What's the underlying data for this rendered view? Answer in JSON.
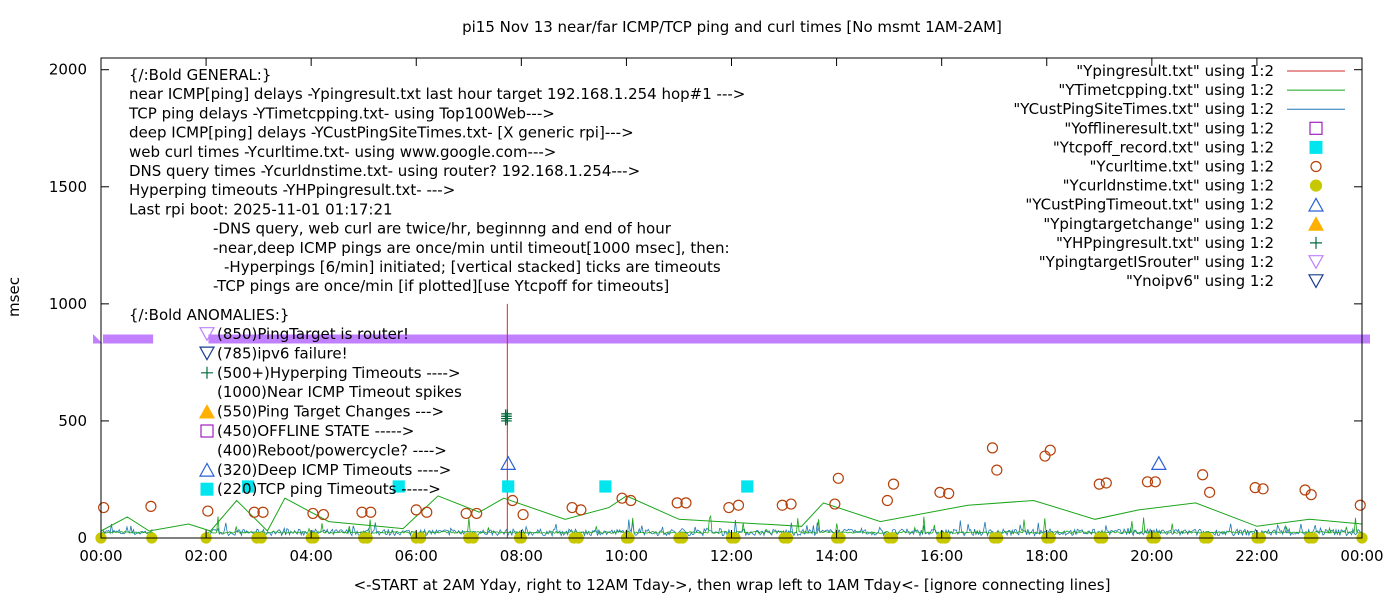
{
  "chart_data": {
    "type": "scatter",
    "title": "pi15 Nov 13  near/far ICMP/TCP ping and curl times [No msmt 1AM-2AM]",
    "xlabel": "<-START at 2AM Yday, right to 12AM Tday->, then wrap left to 1AM Tday<- [ignore connecting lines]",
    "ylabel": "msec",
    "xlim": [
      "00:00",
      "24:00"
    ],
    "ylim": [
      0,
      2050
    ],
    "x_tick_labels": [
      "00:00",
      "02:00",
      "04:00",
      "06:00",
      "08:00",
      "10:00",
      "12:00",
      "14:00",
      "16:00",
      "18:00",
      "20:00",
      "22:00",
      "00:00"
    ],
    "y_ticks": [
      0,
      500,
      1000,
      1500,
      2000
    ],
    "grid": false,
    "legend_position": "top-right",
    "info_lines": [
      "{/:Bold GENERAL:}",
      "near ICMP[ping] delays -Ypingresult.txt last hour target 192.168.1.254 hop#1 --->",
      "TCP ping delays -YTimetcpping.txt- using Top100Web--->",
      "deep ICMP[ping] delays -YCustPingSiteTimes.txt- [X generic rpi]--->",
      "web curl times -Ycurltime.txt- using www.google.com--->",
      "DNS query times -Ycurldnstime.txt- using router? 192.168.1.254--->",
      "Hyperping timeouts -YHPpingresult.txt- --->",
      "Last rpi boot: 2025-11-01 01:17:21",
      "-DNS query, web curl are twice/hr, beginnng and end of hour",
      "-near,deep ICMP pings are once/min until timeout[1000 msec], then:",
      "-Hyperpings [6/min] initiated; [vertical stacked] ticks are timeouts",
      "-TCP pings are once/min [if plotted][use Ytcpoff for timeouts]"
    ],
    "anomalies_title": "{/:Bold ANOMALIES:}",
    "anomaly_lines": [
      {
        "text": "(850)PingTarget is router!",
        "marker": "tri-down-violet"
      },
      {
        "text": "(785)ipv6 failure!",
        "marker": "tri-down-navy"
      },
      {
        "text": "(500+)Hyperping Timeouts ---->",
        "marker": "plus-green"
      },
      {
        "text": "(1000)Near ICMP Timeout spikes",
        "marker": ""
      },
      {
        "text": "(550)Ping Target Changes --->",
        "marker": "tri-up-gold"
      },
      {
        "text": "(450)OFFLINE STATE ----->",
        "marker": "square-purple"
      },
      {
        "text": "(400)Reboot/powercycle? ---->",
        "marker": ""
      },
      {
        "text": "(320)Deep ICMP Timeouts ---->",
        "marker": "tri-up-blue"
      },
      {
        "text": "(220)TCP ping Timeouts ----->",
        "marker": "square-cyan"
      }
    ],
    "legend_entries": [
      {
        "name": "\"Ypingresult.txt\" using 1:2",
        "kind": "line",
        "color": "#d62728"
      },
      {
        "name": "\"YTimetcpping.txt\" using 1:2",
        "kind": "line",
        "color": "#1aa51a"
      },
      {
        "name": "\"YCustPingSiteTimes.txt\" using 1:2",
        "kind": "line",
        "color": "#1f77b4"
      },
      {
        "name": "\"Yofflineresult.txt\" using 1:2",
        "kind": "square-open",
        "color": "#a020c0"
      },
      {
        "name": "\"Ytcpoff_record.txt\" using 1:2",
        "kind": "square-filled",
        "color": "#00e5ee"
      },
      {
        "name": "\"Ycurltime.txt\" using 1:2",
        "kind": "circle-open",
        "color": "#b5410a"
      },
      {
        "name": "\"Ycurldnstime.txt\" using 1:2",
        "kind": "circle-filled",
        "color": "#c8c800"
      },
      {
        "name": "\"YCustPingTimeout.txt\" using 1:2",
        "kind": "tri-up-open",
        "color": "#2a5fd6"
      },
      {
        "name": "\"Ypingtargetchange\" using 1:2",
        "kind": "tri-up-filled",
        "color": "#ffb000"
      },
      {
        "name": "\"YHPpingresult.txt\" using 1:2",
        "kind": "plus",
        "color": "#006b3c"
      },
      {
        "name": "\"YpingtargetISrouter\" using 1:2",
        "kind": "tri-down-open",
        "color": "#c080ff"
      },
      {
        "name": "\"Ynoipv6\" using 1:2",
        "kind": "tri-down-open",
        "color": "#1a3d8f"
      }
    ],
    "colors": {
      "ping": "#d62728",
      "tcp": "#1aa51a",
      "deep": "#1f77b4",
      "offline": "#a020c0",
      "tcpoff": "#00e5ee",
      "curl": "#b5410a",
      "dns": "#c8c800",
      "deeptimeout": "#2a5fd6",
      "targetchange": "#ffb000",
      "hpping": "#006b3c",
      "router": "#c080ff",
      "noipv6": "#1a3d8f"
    },
    "series": {
      "router_band": {
        "name": "\"YpingtargetISrouter\" using 1:2",
        "y": 850,
        "x": [
          "00:00",
          "00:55",
          "02:05",
          "24:00"
        ]
      },
      "near_icmp_spike": {
        "name": "\"Ypingresult.txt\" using 1:2",
        "x": "07:44",
        "y": 1000
      },
      "hyperping_timeouts": {
        "name": "\"YHPpingresult.txt\" using 1:2",
        "x": [
          "07:42",
          "07:42",
          "07:42",
          "07:42",
          "07:44",
          "07:44",
          "07:44",
          "07:44"
        ],
        "y": [
          500,
          510,
          520,
          530,
          500,
          510,
          520,
          530
        ]
      },
      "deep_timeouts": {
        "name": "\"YCustPingTimeout.txt\" using 1:2",
        "x": [
          "07:45",
          "20:08"
        ],
        "y": [
          320,
          320
        ]
      },
      "tcp_timeouts": {
        "name": "\"Ytcpoff_record.txt\" using 1:2",
        "x": [
          "02:48",
          "05:40",
          "07:45",
          "09:36",
          "12:18"
        ],
        "y": [
          220,
          220,
          220,
          220,
          220
        ]
      },
      "curl": {
        "name": "\"Ycurltime.txt\" using 1:2",
        "x": [
          "00:03",
          "00:57",
          "02:02",
          "02:55",
          "03:05",
          "04:02",
          "04:14",
          "04:58",
          "05:08",
          "06:00",
          "06:12",
          "06:57",
          "07:09",
          "07:50",
          "08:02",
          "08:58",
          "09:08",
          "09:55",
          "10:05",
          "10:58",
          "11:08",
          "11:57",
          "12:08",
          "12:58",
          "13:08",
          "13:58",
          "14:02",
          "14:58",
          "15:05",
          "15:58",
          "16:08",
          "16:58",
          "17:03",
          "17:58",
          "18:04",
          "19:00",
          "19:08",
          "19:55",
          "20:04",
          "20:58",
          "21:06",
          "21:58",
          "22:07",
          "22:55",
          "23:02",
          "23:58"
        ],
        "y": [
          130,
          135,
          115,
          110,
          110,
          105,
          100,
          110,
          110,
          120,
          110,
          105,
          105,
          160,
          100,
          130,
          120,
          170,
          160,
          150,
          150,
          130,
          140,
          140,
          145,
          145,
          255,
          160,
          230,
          195,
          190,
          385,
          290,
          350,
          375,
          230,
          235,
          240,
          240,
          270,
          195,
          215,
          210,
          205,
          185,
          140
        ]
      },
      "dns": {
        "name": "\"Ycurldnstime.txt\" using 1:2",
        "x": [
          "00:00",
          "00:58",
          "02:00",
          "02:58",
          "03:03",
          "04:00",
          "04:03",
          "05:00",
          "05:04",
          "06:00",
          "06:05",
          "07:00",
          "07:05",
          "07:58",
          "08:00",
          "09:00",
          "09:05",
          "10:00",
          "10:03",
          "11:00",
          "11:04",
          "12:00",
          "12:04",
          "13:00",
          "13:04",
          "14:00",
          "14:04",
          "15:00",
          "15:04",
          "16:00",
          "16:04",
          "17:00",
          "17:04",
          "18:00",
          "18:04",
          "19:00",
          "19:04",
          "20:00",
          "20:04",
          "21:00",
          "21:04",
          "22:00",
          "22:04",
          "23:00",
          "23:04",
          "24:00"
        ],
        "y": [
          0,
          0,
          0,
          0,
          0,
          0,
          0,
          0,
          0,
          0,
          0,
          0,
          0,
          0,
          0,
          0,
          0,
          0,
          0,
          0,
          0,
          0,
          0,
          0,
          0,
          0,
          0,
          0,
          0,
          0,
          0,
          0,
          0,
          0,
          0,
          0,
          0,
          0,
          0,
          0,
          0,
          0,
          0,
          0,
          0,
          0
        ]
      },
      "tcp_line": {
        "name": "\"YTimetcpping.txt\" using 1:2",
        "x": [
          "00:00",
          "00:30",
          "00:55",
          "01:40",
          "02:05",
          "02:35",
          "03:10",
          "03:30",
          "04:20",
          "05:45",
          "06:25",
          "07:12",
          "07:40",
          "08:50",
          "09:40",
          "10:00",
          "11:00",
          "13:20",
          "13:45",
          "14:50",
          "16:30",
          "17:45",
          "18:55",
          "19:45",
          "20:50",
          "22:00",
          "23:00",
          "24:00"
        ],
        "y": [
          30,
          90,
          30,
          60,
          30,
          160,
          30,
          170,
          70,
          40,
          180,
          110,
          170,
          80,
          130,
          180,
          80,
          50,
          150,
          70,
          140,
          160,
          80,
          120,
          150,
          50,
          80,
          60
        ]
      }
    }
  }
}
